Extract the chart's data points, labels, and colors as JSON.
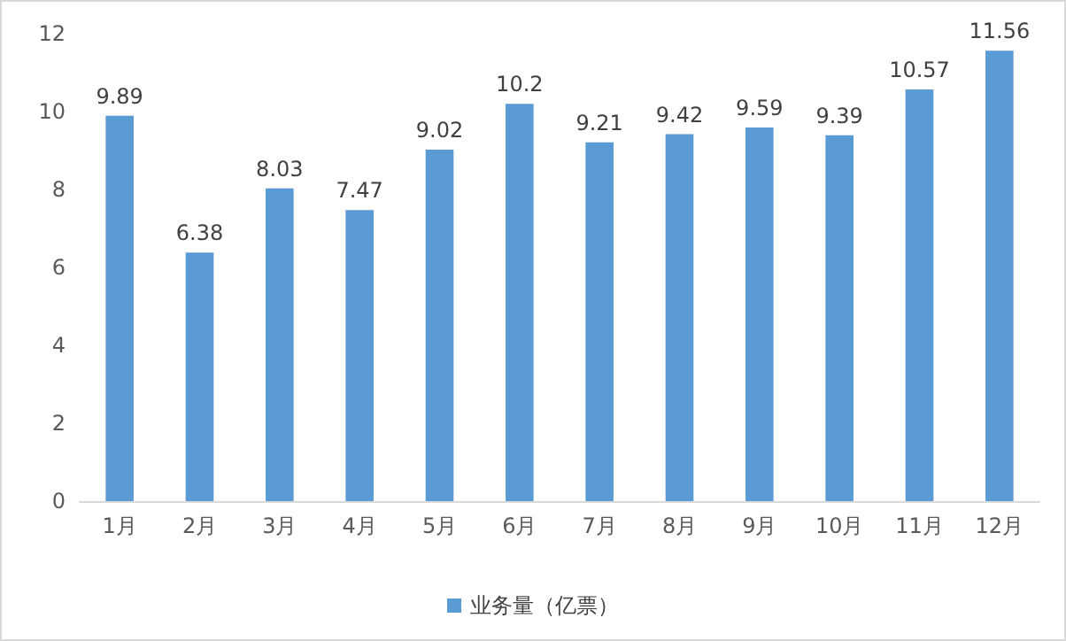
{
  "chart_data": {
    "type": "bar",
    "categories": [
      "1月",
      "2月",
      "3月",
      "4月",
      "5月",
      "6月",
      "7月",
      "8月",
      "9月",
      "10月",
      "11月",
      "12月"
    ],
    "series": [
      {
        "name": "业务量（亿票）",
        "color": "#5b9bd5",
        "values": [
          9.89,
          6.38,
          8.03,
          7.47,
          9.02,
          10.2,
          9.21,
          9.42,
          9.59,
          9.39,
          10.57,
          11.56
        ]
      }
    ],
    "ylim": [
      0,
      12
    ],
    "yticks": [
      0,
      2,
      4,
      6,
      8,
      10,
      12
    ],
    "grid": false,
    "legend": "bottom",
    "data_labels": true
  }
}
